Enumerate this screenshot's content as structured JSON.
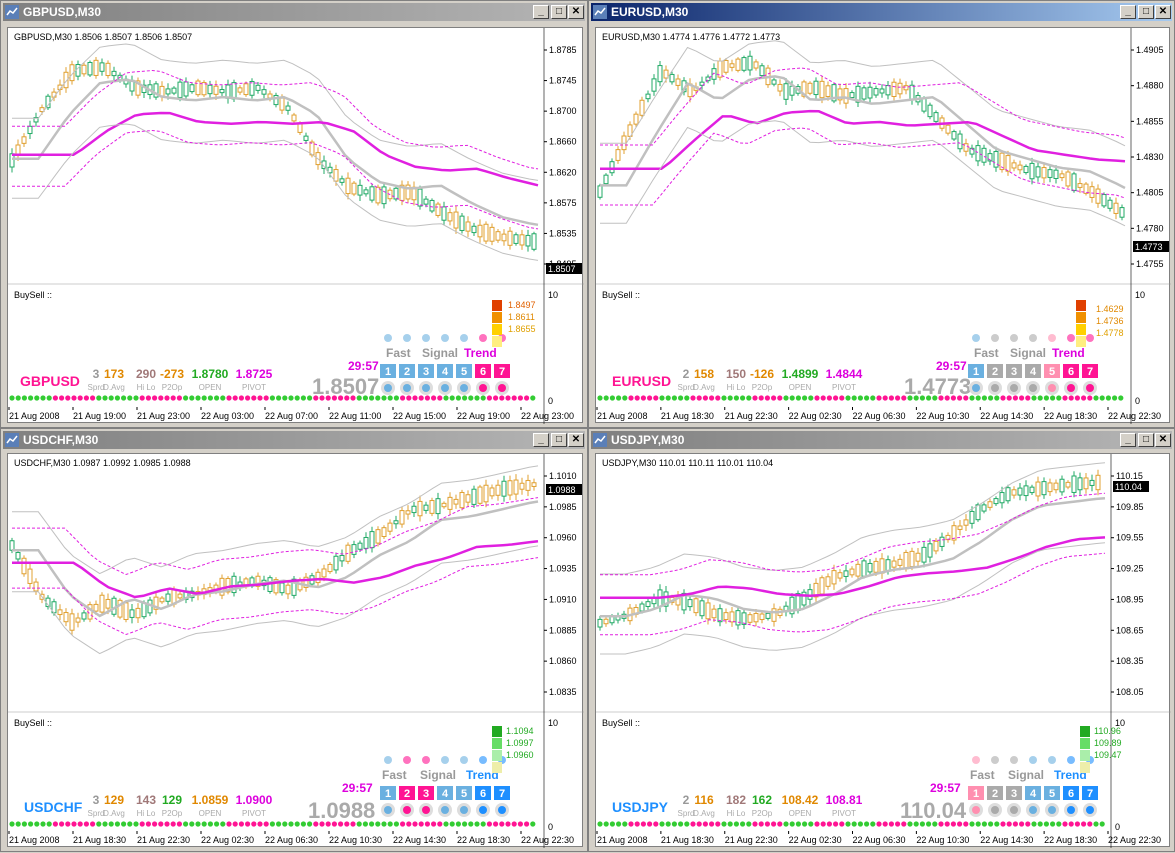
{
  "windows": [
    {
      "id": "gbpusd",
      "title": "GBPUSD,M30",
      "active": false,
      "chart_header": "GBPUSD,M30  1.8506 1.8507 1.8506 1.8507",
      "price_ticks": [
        "1.8785",
        "1.8745",
        "1.8700",
        "1.8660",
        "1.8620",
        "1.8575",
        "1.8535",
        "1.8495"
      ],
      "current_price": "1.8507",
      "ind_label": "BuySell ::",
      "ind_scale_top": "10",
      "ind_scale_bottom": "0",
      "symbol": "GBPUSD",
      "symbol_color": "#ff1493",
      "stats": [
        {
          "v": "3",
          "l": "Sprd",
          "c": "#999999"
        },
        {
          "v": "173",
          "l": "D.Avg",
          "c": "#e08800"
        },
        {
          "v": "290",
          "l": "Hi Lo",
          "c": "#a07878"
        },
        {
          "v": "-273",
          "l": "P2Op",
          "c": "#e08800"
        },
        {
          "v": "1.8780",
          "l": "OPEN",
          "c": "#22aa22"
        },
        {
          "v": "1.8725",
          "l": "PIVOT",
          "c": "#dd00dd"
        }
      ],
      "timer": "29:57",
      "big_price": "1.8507",
      "fast": "Fast",
      "signal": "Signal",
      "trend": "Trend",
      "levels": [
        "1.8497",
        "1.8611",
        "1.8655"
      ],
      "time_labels": [
        "21 Aug 2008",
        "21 Aug 19:00",
        "21 Aug 23:00",
        "22 Aug 03:00",
        "22 Aug 07:00",
        "22 Aug 11:00",
        "22 Aug 15:00",
        "22 Aug 19:00",
        "22 Aug 23:00"
      ]
    },
    {
      "id": "eurusd",
      "title": "EURUSD,M30",
      "active": true,
      "chart_header": "EURUSD,M30  1.4774 1.4776 1.4772 1.4773",
      "price_ticks": [
        "1.4905",
        "1.4880",
        "1.4855",
        "1.4830",
        "1.4805",
        "1.4780",
        "1.4755"
      ],
      "current_price": "1.4773",
      "ind_label": "BuySell ::",
      "ind_scale_top": "10",
      "ind_scale_bottom": "0",
      "symbol": "EURUSD",
      "symbol_color": "#ff1493",
      "stats": [
        {
          "v": "2",
          "l": "Sprd",
          "c": "#999999"
        },
        {
          "v": "158",
          "l": "D.Avg",
          "c": "#e08800"
        },
        {
          "v": "150",
          "l": "Hi Lo",
          "c": "#a07878"
        },
        {
          "v": "-126",
          "l": "P2Op",
          "c": "#e08800"
        },
        {
          "v": "1.4899",
          "l": "OPEN",
          "c": "#22aa22"
        },
        {
          "v": "1.4844",
          "l": "PIVOT",
          "c": "#dd00dd"
        }
      ],
      "timer": "29:57",
      "big_price": "1.4773",
      "fast": "Fast",
      "signal": "Signal",
      "trend": "Trend",
      "levels": [
        "1.4629",
        "1.4736",
        "1.4778"
      ],
      "time_labels": [
        "21 Aug 2008",
        "21 Aug 18:30",
        "21 Aug 22:30",
        "22 Aug 02:30",
        "22 Aug 06:30",
        "22 Aug 10:30",
        "22 Aug 14:30",
        "22 Aug 18:30",
        "22 Aug 22:30"
      ]
    },
    {
      "id": "usdchf",
      "title": "USDCHF,M30",
      "active": false,
      "chart_header": "USDCHF,M30  1.0987 1.0992 1.0985 1.0988",
      "price_ticks": [
        "1.1010",
        "1.0985",
        "1.0960",
        "1.0935",
        "1.0910",
        "1.0885",
        "1.0860",
        "1.0835"
      ],
      "current_price": "1.0988",
      "ind_label": "BuySell ::",
      "ind_scale_top": "10",
      "ind_scale_bottom": "0",
      "symbol": "USDCHF",
      "symbol_color": "#1e8fff",
      "stats": [
        {
          "v": "3",
          "l": "Sprd",
          "c": "#999999"
        },
        {
          "v": "129",
          "l": "D.Avg",
          "c": "#e08800"
        },
        {
          "v": "143",
          "l": "Hi Lo",
          "c": "#a07878"
        },
        {
          "v": "129",
          "l": "P2Op",
          "c": "#22aa22"
        },
        {
          "v": "1.0859",
          "l": "OPEN",
          "c": "#e08800"
        },
        {
          "v": "1.0900",
          "l": "PIVOT",
          "c": "#dd00dd"
        }
      ],
      "timer": "29:57",
      "big_price": "1.0988",
      "fast": "Fast",
      "signal": "Signal",
      "trend": "Trend",
      "levels": [
        "1.1094",
        "1.0997",
        "1.0960"
      ],
      "time_labels": [
        "21 Aug 2008",
        "21 Aug 18:30",
        "21 Aug 22:30",
        "22 Aug 02:30",
        "22 Aug 06:30",
        "22 Aug 10:30",
        "22 Aug 14:30",
        "22 Aug 18:30",
        "22 Aug 22:30"
      ]
    },
    {
      "id": "usdjpy",
      "title": "USDJPY,M30",
      "active": false,
      "chart_header": "USDJPY,M30  110.01 110.11 110.01 110.04",
      "price_ticks": [
        "110.15",
        "109.85",
        "109.55",
        "109.25",
        "108.95",
        "108.65",
        "108.35",
        "108.05"
      ],
      "current_price": "110.04",
      "ind_label": "BuySell ::",
      "ind_scale_top": "10",
      "ind_scale_bottom": "0",
      "symbol": "USDJPY",
      "symbol_color": "#1e8fff",
      "stats": [
        {
          "v": "2",
          "l": "Sprd",
          "c": "#999999"
        },
        {
          "v": "116",
          "l": "D.Avg",
          "c": "#e08800"
        },
        {
          "v": "182",
          "l": "Hi Lo",
          "c": "#a07878"
        },
        {
          "v": "162",
          "l": "P2Op",
          "c": "#22aa22"
        },
        {
          "v": "108.42",
          "l": "OPEN",
          "c": "#e08800"
        },
        {
          "v": "108.81",
          "l": "PIVOT",
          "c": "#dd00dd"
        }
      ],
      "timer": "29:57",
      "big_price": "110.04",
      "fast": "Fast",
      "signal": "Signal",
      "trend": "Trend",
      "levels": [
        "110.96",
        "109.89",
        "109.47"
      ],
      "time_labels": [
        "21 Aug 2008",
        "21 Aug 18:30",
        "21 Aug 22:30",
        "22 Aug 02:30",
        "22 Aug 06:30",
        "22 Aug 10:30",
        "22 Aug 14:30",
        "22 Aug 18:30",
        "22 Aug 22:30"
      ]
    }
  ],
  "colors": {
    "ma_fast": "#c0c0c0",
    "ma_slow": "#e020e0",
    "bands": "#c0c0c0",
    "env": "#e020e0",
    "bull": "#22aa66",
    "bear": "#e0a030",
    "dot_green": "#33cc33",
    "dot_pink": "#ff1493"
  }
}
